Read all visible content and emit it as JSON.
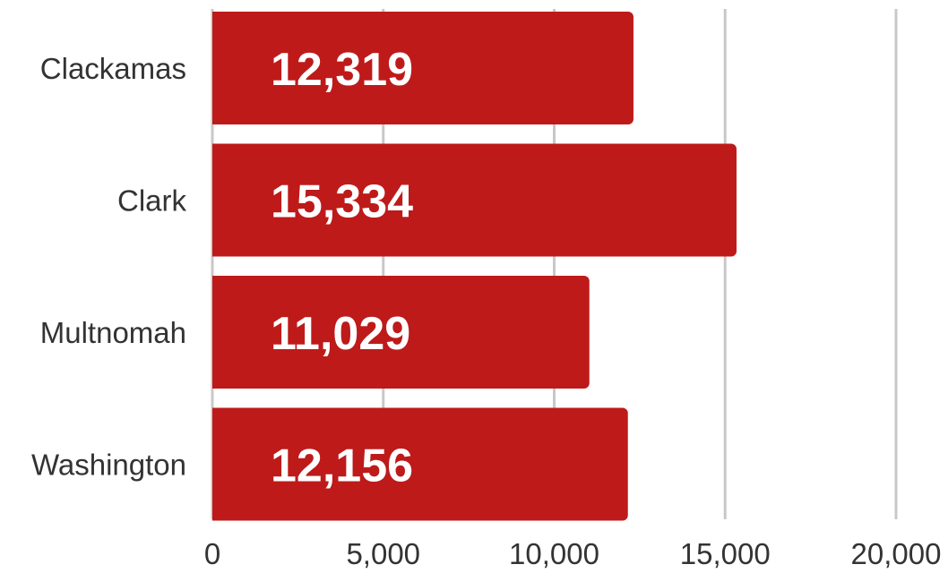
{
  "chart_data": {
    "type": "bar",
    "orientation": "horizontal",
    "categories": [
      "Clackamas",
      "Clark",
      "Multnomah",
      "Washington"
    ],
    "values": [
      12319,
      15334,
      11029,
      12156
    ],
    "value_labels": [
      "12,319",
      "15,334",
      "11,029",
      "12,156"
    ],
    "xticks": [
      0,
      5000,
      10000,
      15000,
      20000
    ],
    "xtick_labels": [
      "0",
      "5,000",
      "10,000",
      "15,000",
      "20,000"
    ],
    "xlim": [
      0,
      20000
    ],
    "grid": true,
    "legend": "none",
    "colors": {
      "bar": "#be1a1a",
      "grid": "#c8c8c8",
      "text": "#333333",
      "value_text": "#ffffff"
    }
  }
}
